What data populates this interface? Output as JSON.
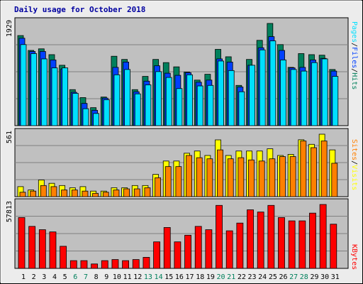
{
  "title": "Daily usage for October 2018",
  "colors": {
    "background": "#ececec",
    "panel": "#c0c0c0",
    "hits": "#00805c",
    "files": "#0040ff",
    "pages": "#00e0ff",
    "visits": "#ffff00",
    "sites": "#ff8000",
    "kbytes": "#ff0000",
    "weekday_label": "#000000",
    "weekend_label": "#00805c",
    "title": "#0000a0"
  },
  "chart_data": [
    {
      "type": "bar",
      "name": "hits-files-pages",
      "categories": [
        "1",
        "2",
        "3",
        "4",
        "5",
        "6",
        "7",
        "8",
        "9",
        "10",
        "11",
        "12",
        "13",
        "14",
        "15",
        "16",
        "17",
        "18",
        "19",
        "20",
        "21",
        "22",
        "23",
        "24",
        "25",
        "26",
        "27",
        "28",
        "29",
        "30",
        "31"
      ],
      "max_label": "1929",
      "side_labels": [
        "Pages",
        "/",
        "Files",
        "/",
        "Hits"
      ],
      "series": [
        {
          "name": "Hits",
          "values": [
            1700,
            1420,
            1450,
            1340,
            1140,
            680,
            530,
            340,
            540,
            1310,
            1250,
            680,
            930,
            1250,
            1190,
            1110,
            1010,
            860,
            970,
            1440,
            1300,
            760,
            1250,
            1610,
            1929,
            1530,
            1100,
            1360,
            1340,
            1330,
            1060
          ]
        },
        {
          "name": "Files",
          "values": [
            1650,
            1400,
            1400,
            1240,
            1070,
            630,
            420,
            290,
            520,
            1100,
            1200,
            640,
            840,
            1130,
            990,
            950,
            1000,
            820,
            860,
            1260,
            1200,
            730,
            1140,
            1470,
            1680,
            1420,
            1090,
            1100,
            1240,
            1270,
            1030
          ]
        },
        {
          "name": "Pages",
          "values": [
            1530,
            1360,
            1260,
            1090,
            1090,
            610,
            320,
            230,
            490,
            960,
            1060,
            600,
            770,
            1020,
            910,
            700,
            960,
            750,
            760,
            1220,
            1040,
            640,
            1140,
            1430,
            1600,
            1240,
            1060,
            1030,
            1190,
            1260,
            930
          ]
        }
      ]
    },
    {
      "type": "bar",
      "name": "visits-sites",
      "categories": [
        "1",
        "2",
        "3",
        "4",
        "5",
        "6",
        "7",
        "8",
        "9",
        "10",
        "11",
        "12",
        "13",
        "14",
        "15",
        "16",
        "17",
        "18",
        "19",
        "20",
        "21",
        "22",
        "23",
        "24",
        "25",
        "26",
        "27",
        "28",
        "29",
        "30",
        "31"
      ],
      "max_label": "561",
      "side_labels": [
        "Sites",
        "/",
        "Visits"
      ],
      "series": [
        {
          "name": "Visits",
          "values": [
            90,
            60,
            150,
            120,
            100,
            80,
            90,
            50,
            50,
            80,
            80,
            100,
            100,
            200,
            320,
            320,
            390,
            410,
            370,
            510,
            370,
            410,
            410,
            410,
            430,
            370,
            380,
            511,
            470,
            561,
            420
          ]
        },
        {
          "name": "Sites",
          "values": [
            40,
            50,
            100,
            90,
            60,
            60,
            50,
            30,
            40,
            60,
            70,
            70,
            80,
            170,
            270,
            270,
            370,
            350,
            340,
            420,
            340,
            350,
            330,
            320,
            340,
            360,
            360,
            500,
            440,
            500,
            300
          ]
        }
      ]
    },
    {
      "type": "bar",
      "name": "kbytes",
      "categories": [
        "1",
        "2",
        "3",
        "4",
        "5",
        "6",
        "7",
        "8",
        "9",
        "10",
        "11",
        "12",
        "13",
        "14",
        "15",
        "16",
        "17",
        "18",
        "19",
        "20",
        "21",
        "22",
        "23",
        "24",
        "25",
        "26",
        "27",
        "28",
        "29",
        "30",
        "31"
      ],
      "max_label": "57813",
      "side_labels": [
        "KBytes"
      ],
      "series": [
        {
          "name": "KBytes",
          "values": [
            46000,
            38000,
            35000,
            33000,
            20000,
            7000,
            7000,
            4000,
            7000,
            8000,
            7000,
            8000,
            10000,
            24000,
            37000,
            24000,
            30000,
            38000,
            35000,
            57000,
            34000,
            41000,
            53000,
            51000,
            57000,
            46000,
            43000,
            43000,
            50000,
            57813,
            40000
          ]
        }
      ]
    }
  ],
  "day_types": [
    "w",
    "w",
    "w",
    "w",
    "w",
    "e",
    "e",
    "w",
    "w",
    "w",
    "w",
    "w",
    "e",
    "e",
    "w",
    "w",
    "w",
    "w",
    "w",
    "e",
    "e",
    "w",
    "w",
    "w",
    "w",
    "w",
    "e",
    "e",
    "w",
    "w",
    "w"
  ]
}
